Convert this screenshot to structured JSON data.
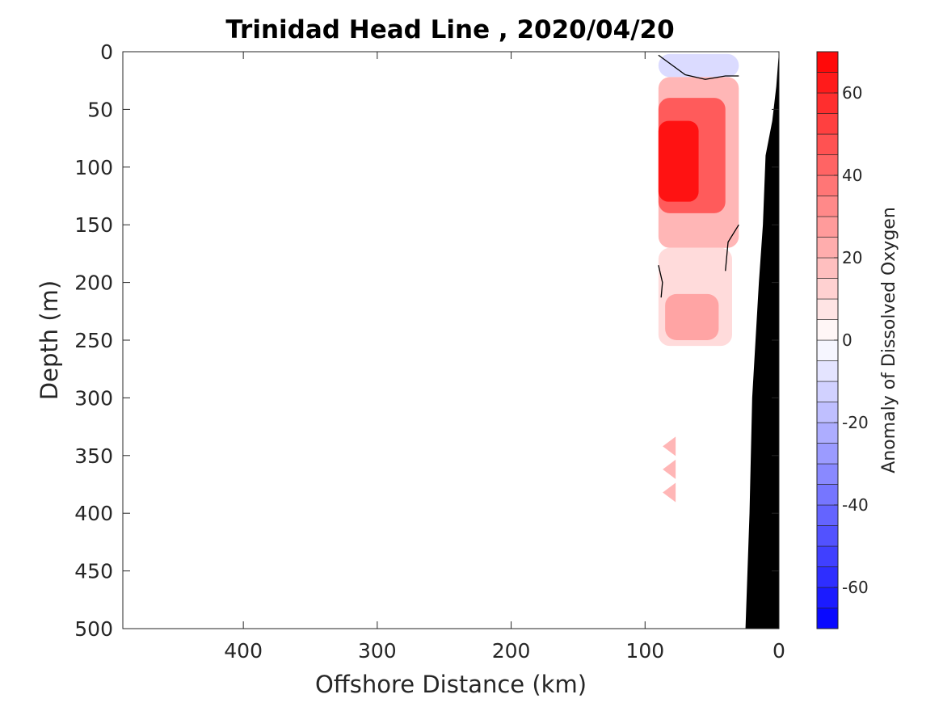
{
  "chart_data": {
    "type": "contour",
    "title": "Trinidad Head Line , 2020/04/20",
    "xlabel": "Offshore Distance (km)",
    "ylabel": "Depth (m)",
    "colorbar_label": "Anomaly of Dissolved Oxygen",
    "xlim": [
      490,
      0
    ],
    "xticks": [
      400,
      300,
      200,
      100,
      0
    ],
    "ylim": [
      0,
      500
    ],
    "yticks": [
      0,
      50,
      100,
      150,
      200,
      250,
      300,
      350,
      400,
      450,
      500
    ],
    "colorbar_range": [
      -70,
      70
    ],
    "colorbar_step": 5,
    "colorbar_ticks": [
      -60,
      -40,
      -20,
      0,
      20,
      40,
      60
    ],
    "colormap": {
      "negative": "#0000ff",
      "zero": "#ffffff",
      "positive": "#ff0000"
    },
    "bathymetry_color": "#000000",
    "fields": [
      {
        "x_range": [
          30,
          90
        ],
        "depth_range": [
          2,
          22
        ],
        "value": -10
      },
      {
        "x_range": [
          30,
          90
        ],
        "depth_range": [
          22,
          170
        ],
        "value": 20
      },
      {
        "x_range": [
          40,
          90
        ],
        "depth_range": [
          40,
          140
        ],
        "value": 45
      },
      {
        "x_range": [
          60,
          90
        ],
        "depth_range": [
          60,
          130
        ],
        "value": 65
      },
      {
        "x_range": [
          35,
          90
        ],
        "depth_range": [
          170,
          255
        ],
        "value": 10
      },
      {
        "x_range": [
          45,
          85
        ],
        "depth_range": [
          210,
          250
        ],
        "value": 25
      }
    ],
    "zero_contours": [
      {
        "points": [
          [
            90,
            3
          ],
          [
            70,
            20
          ],
          [
            55,
            24
          ],
          [
            40,
            21
          ],
          [
            30,
            21
          ]
        ]
      },
      {
        "points": [
          [
            30,
            150
          ],
          [
            38,
            165
          ],
          [
            40,
            190
          ]
        ]
      },
      {
        "points": [
          [
            90,
            185
          ],
          [
            87,
            200
          ],
          [
            88,
            213
          ]
        ]
      }
    ],
    "isolated_patches": [
      {
        "x": 82,
        "depth": 342,
        "value": 20
      },
      {
        "x": 82,
        "depth": 362,
        "value": 20
      },
      {
        "x": 82,
        "depth": 382,
        "value": 20
      }
    ],
    "bathymetry": [
      [
        0,
        0
      ],
      [
        2,
        30
      ],
      [
        5,
        60
      ],
      [
        10,
        90
      ],
      [
        12,
        150
      ],
      [
        15,
        200
      ],
      [
        20,
        300
      ],
      [
        22,
        400
      ],
      [
        25,
        500
      ]
    ]
  }
}
